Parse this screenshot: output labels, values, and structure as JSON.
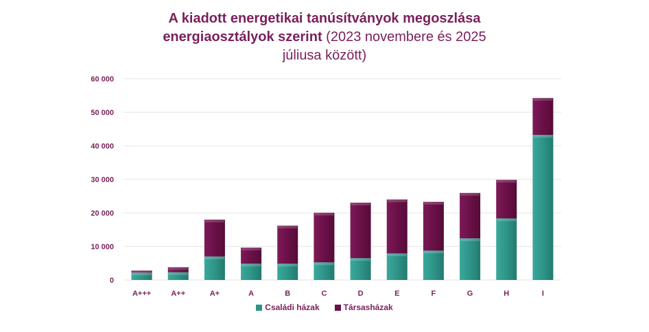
{
  "chart_data": {
    "type": "bar",
    "stacked": true,
    "title_bold_1": "A kiadott energetikai tanúsítványok megoszlása",
    "title_bold_2": "energiaosztályok szerint",
    "title_normal_2": " (2023 novembere és 2025",
    "title_normal_3": "júliusa között)",
    "xlabel": "",
    "ylabel": "",
    "ylim": [
      0,
      60000
    ],
    "yticks": [
      0,
      10000,
      20000,
      30000,
      40000,
      50000,
      60000
    ],
    "ytick_labels": [
      "0",
      "10 000",
      "20 000",
      "30 000",
      "40 000",
      "50 000",
      "60 000"
    ],
    "grid": true,
    "legend_position": "bottom",
    "categories": [
      "A+++",
      "A++",
      "A+",
      "A",
      "B",
      "C",
      "D",
      "E",
      "F",
      "G",
      "H",
      "I"
    ],
    "series": [
      {
        "name": "Családi házak",
        "color": "#2e9488",
        "values": [
          2200,
          2300,
          7000,
          4850,
          4850,
          5250,
          6500,
          7900,
          8750,
          12400,
          18350,
          43250
        ]
      },
      {
        "name": "Társasházak",
        "color": "#6b1048",
        "values": [
          600,
          1500,
          11000,
          4800,
          11350,
          14800,
          16550,
          16100,
          14550,
          13550,
          11500,
          11000
        ]
      }
    ]
  }
}
